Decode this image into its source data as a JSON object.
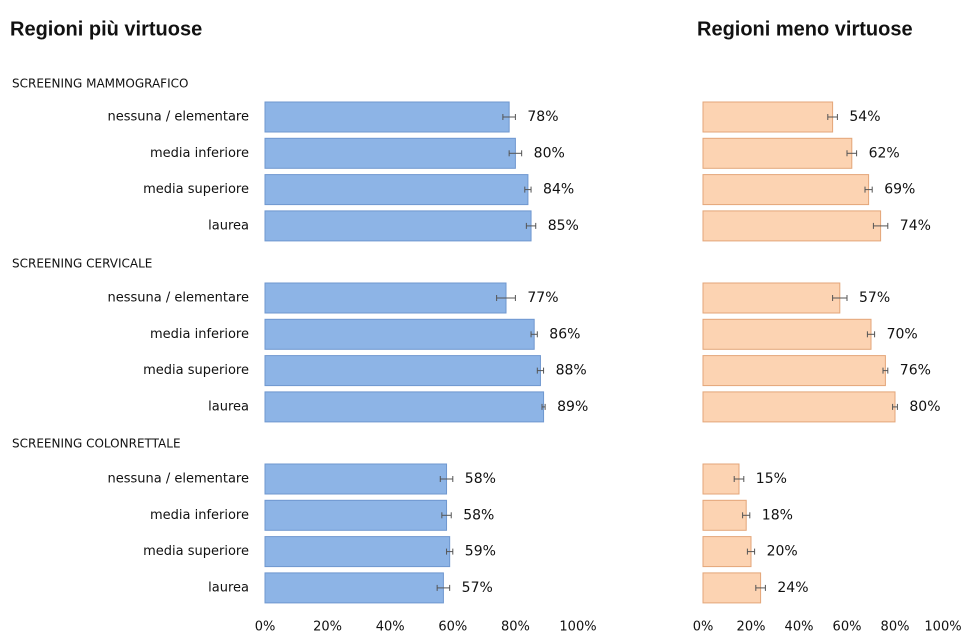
{
  "chart_data": [
    {
      "type": "bar",
      "orientation": "horizontal",
      "title": "Regioni più virtuose",
      "groups": [
        "SCREENING MAMMOGRAFICO",
        "SCREENING CERVICALE",
        "SCREENING COLONRETTALE"
      ],
      "categories": [
        "nessuna / elementare",
        "media inferiore",
        "media superiore",
        "laurea",
        "nessuna / elementare",
        "media inferiore",
        "media superiore",
        "laurea",
        "nessuna / elementare",
        "media inferiore",
        "media superiore",
        "laurea"
      ],
      "values": [
        78,
        80,
        84,
        85,
        77,
        86,
        88,
        89,
        58,
        58,
        59,
        57
      ],
      "value_labels": [
        "78%",
        "80%",
        "84%",
        "85%",
        "77%",
        "86%",
        "88%",
        "89%",
        "58%",
        "58%",
        "59%",
        "57%"
      ],
      "errors": [
        2,
        2,
        1,
        1.5,
        3,
        1,
        1,
        0.5,
        2,
        1.5,
        1,
        2
      ],
      "color": "#8db4e6",
      "edge_color": "#6f97cf",
      "xlim": [
        0,
        100
      ],
      "xticks": [
        {
          "value": 0,
          "label": "0%"
        },
        {
          "value": 20,
          "label": "20%"
        },
        {
          "value": 40,
          "label": "40%"
        },
        {
          "value": 60,
          "label": "60%"
        },
        {
          "value": 80,
          "label": "80%"
        },
        {
          "value": 100,
          "label": "100%"
        }
      ]
    },
    {
      "type": "bar",
      "orientation": "horizontal",
      "title": "Regioni meno virtuose",
      "values": [
        54,
        62,
        69,
        74,
        57,
        70,
        76,
        80,
        15,
        18,
        20,
        24
      ],
      "value_labels": [
        "54%",
        "62%",
        "69%",
        "74%",
        "57%",
        "70%",
        "76%",
        "80%",
        "15%",
        "18%",
        "20%",
        "24%"
      ],
      "errors": [
        2,
        2,
        1.5,
        3,
        3,
        1.5,
        1,
        1,
        2,
        1.5,
        1.5,
        2
      ],
      "color": "#fcd3b2",
      "edge_color": "#e3a679",
      "xlim": [
        0,
        100
      ],
      "xticks": [
        {
          "value": 0,
          "label": "0%"
        },
        {
          "value": 20,
          "label": "20%"
        },
        {
          "value": 40,
          "label": "40%"
        },
        {
          "value": 60,
          "label": "60%"
        },
        {
          "value": 80,
          "label": "80%"
        },
        {
          "value": 100,
          "label": "100%"
        }
      ]
    }
  ]
}
